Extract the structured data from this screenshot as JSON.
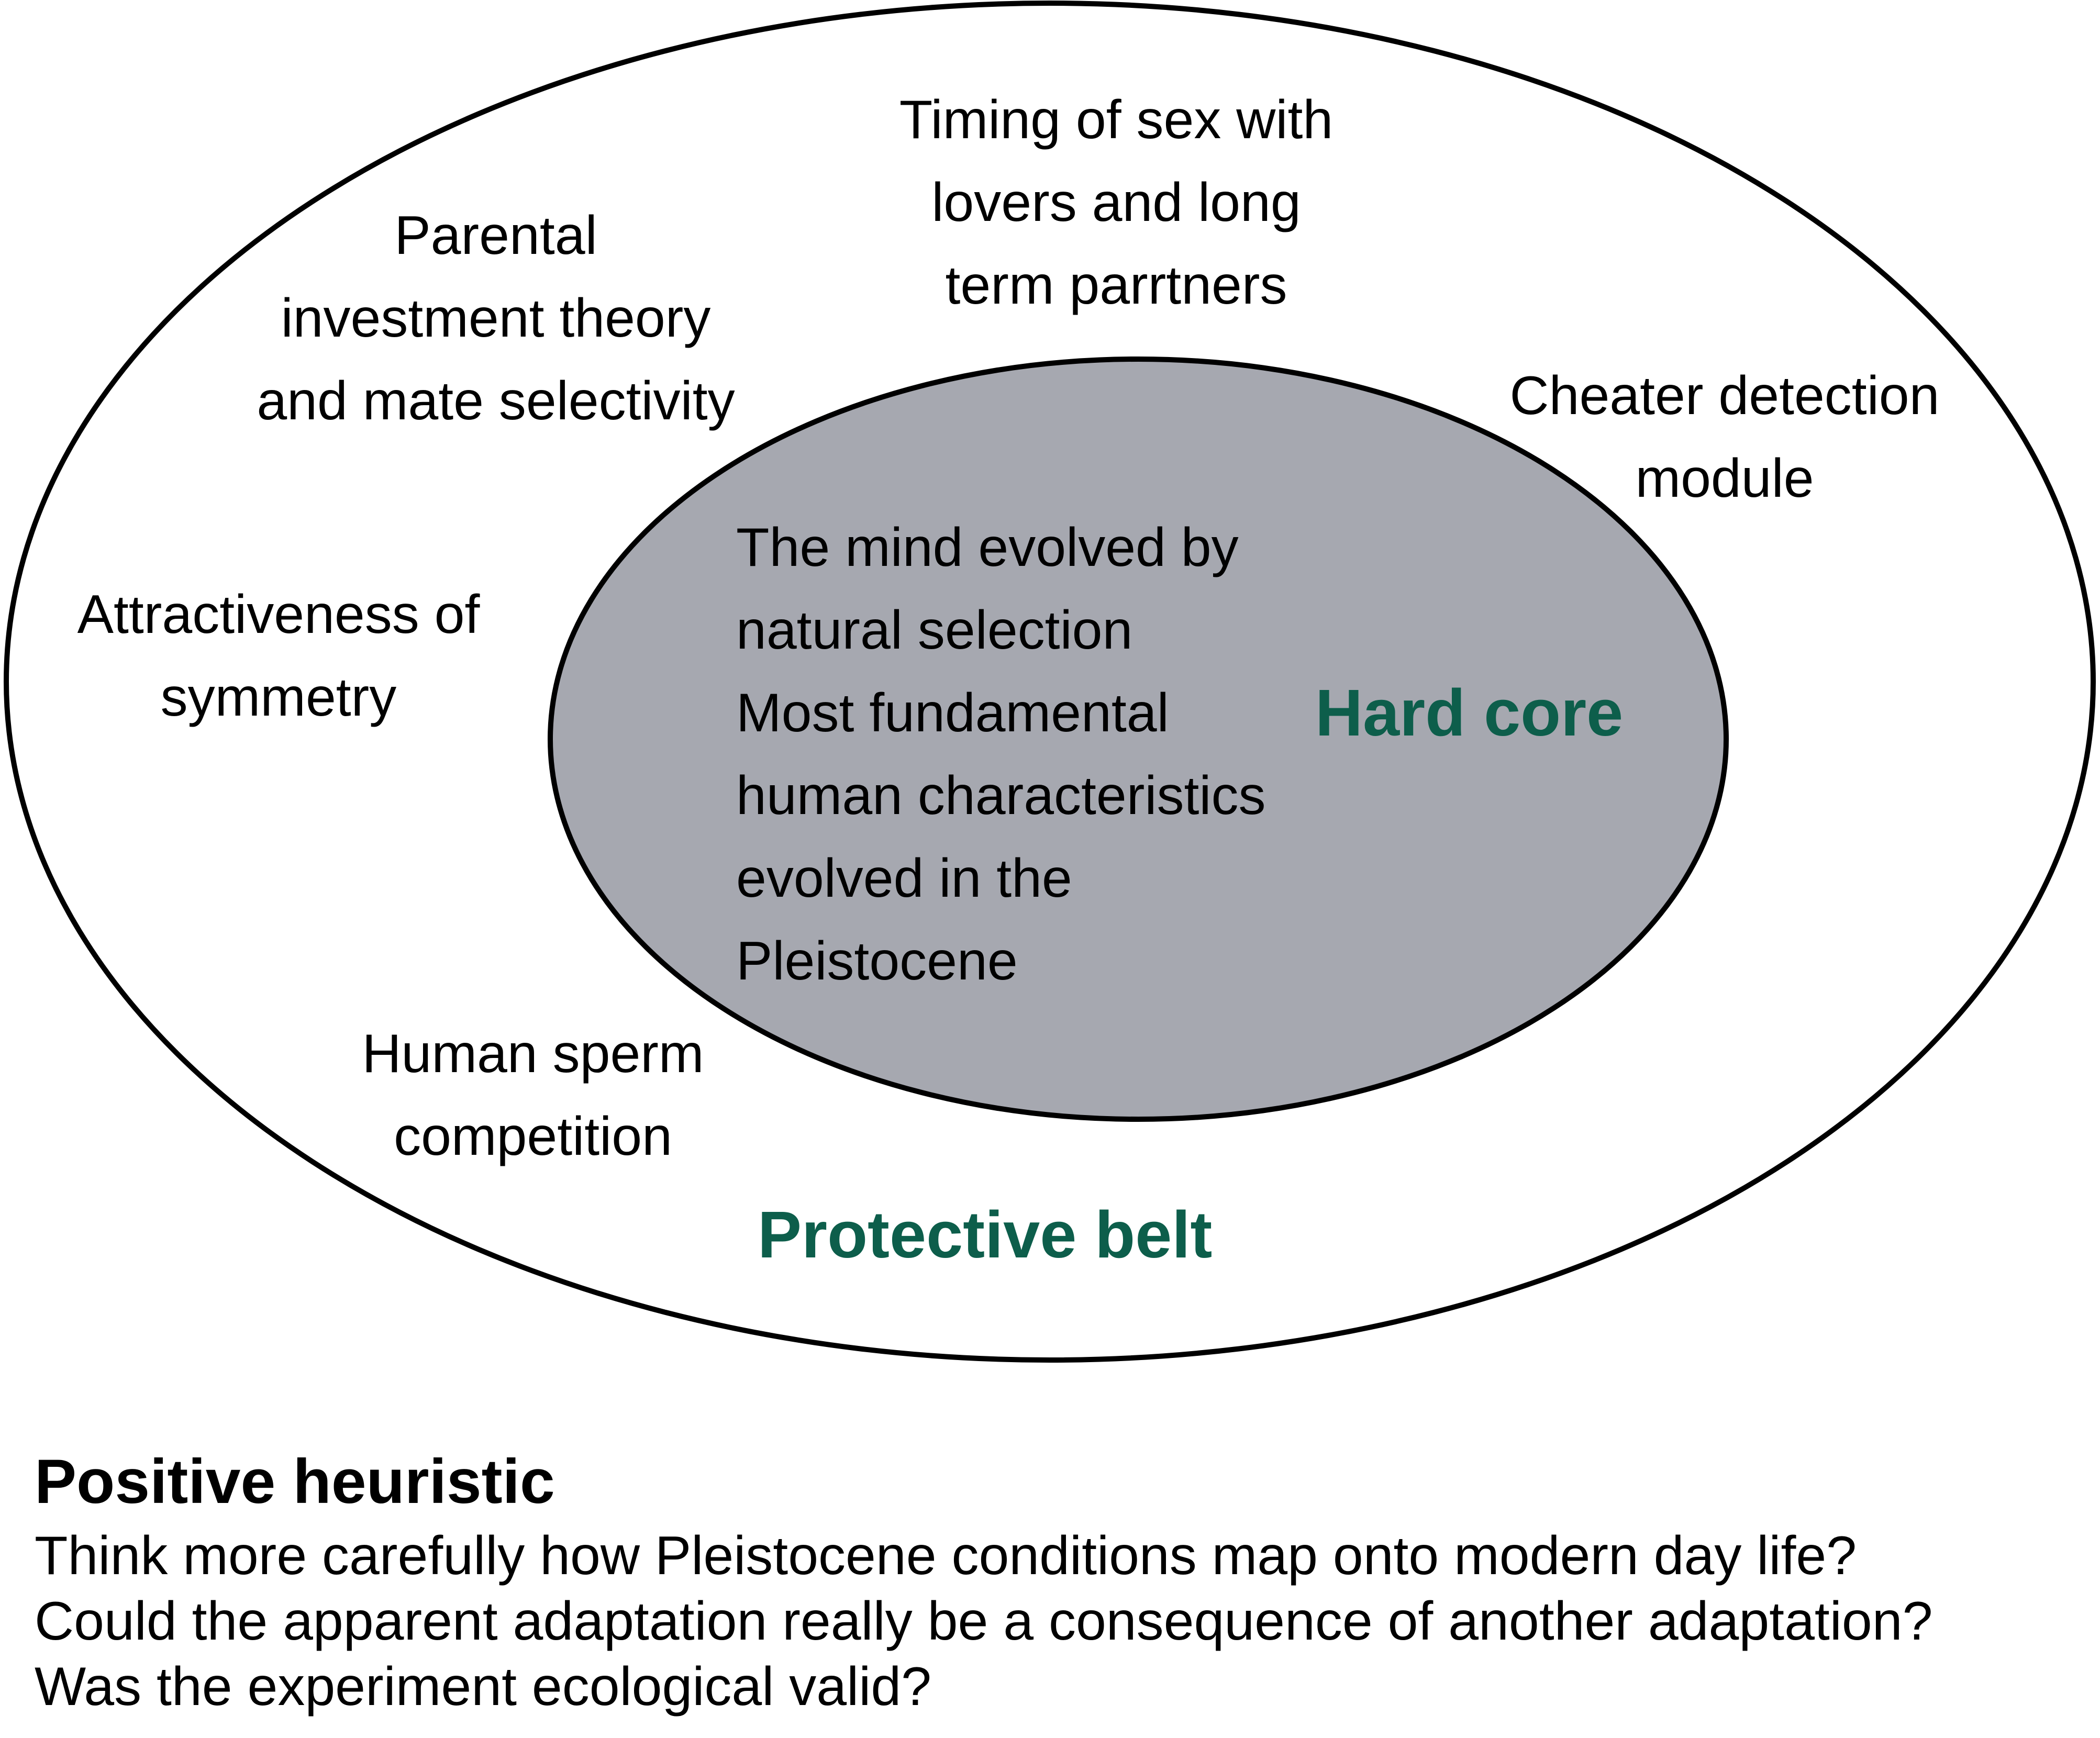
{
  "colors": {
    "label_green": "#0d5e4b",
    "core_fill": "#a6a8b0",
    "outline": "#000000"
  },
  "belt": {
    "label": "Protective belt",
    "items": {
      "timing": [
        "Timing of sex with",
        "lovers and long",
        "term parrtners"
      ],
      "parental": [
        "Parental",
        "investment theory",
        "and mate selectivity"
      ],
      "cheater": [
        "Cheater detection",
        "module"
      ],
      "symmetry": [
        "Attractiveness of",
        "symmetry"
      ],
      "sperm": [
        "Human sperm",
        "competition"
      ]
    }
  },
  "core": {
    "label": "Hard core",
    "lines": [
      "The mind evolved by",
      "natural selection",
      "Most fundamental",
      "human characteristics",
      "evolved in the",
      "Pleistocene"
    ]
  },
  "heuristic": {
    "title": "Positive heuristic",
    "lines": [
      "Think more carefully how Pleistocene conditions map onto modern day life?",
      "Could the apparent adaptation really be a consequence of another adaptation?",
      "Was the experiment ecological valid?"
    ]
  }
}
